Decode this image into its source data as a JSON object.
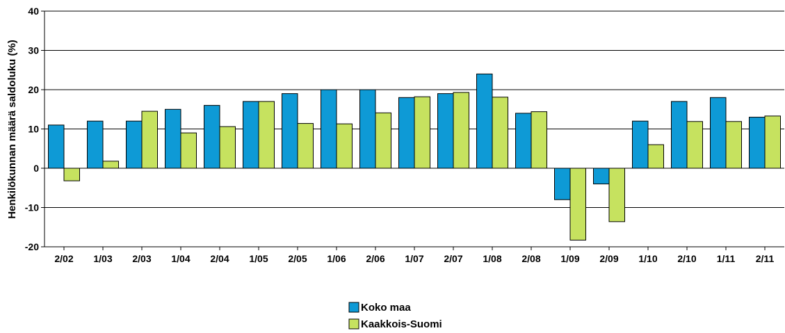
{
  "chart_data": {
    "type": "bar",
    "categories": [
      "2/02",
      "1/03",
      "2/03",
      "1/04",
      "2/04",
      "1/05",
      "2/05",
      "1/06",
      "2/06",
      "1/07",
      "2/07",
      "1/08",
      "2/08",
      "1/09",
      "2/09",
      "1/10",
      "2/10",
      "1/11",
      "2/11"
    ],
    "series": [
      {
        "name": "Koko maa",
        "color": "#0e9ad6",
        "values": [
          11,
          12,
          12,
          15,
          16,
          17,
          19,
          20,
          20,
          18,
          19,
          24,
          14,
          -8,
          -4,
          12,
          17,
          18,
          13
        ]
      },
      {
        "name": "Kaakkois-Suomi",
        "color": "#c6e25f",
        "values": [
          -3.2,
          1.8,
          14.5,
          9,
          10.6,
          17,
          11.4,
          11.3,
          14.1,
          18.2,
          19.3,
          18.1,
          14.4,
          -18.3,
          -13.6,
          6,
          11.9,
          11.9,
          13.3
        ]
      }
    ],
    "ylabel": "Henkilökunnan määrä saldoluku (%)",
    "xlabel": "",
    "ylim": [
      -20,
      40
    ],
    "yticks": [
      -20,
      -10,
      0,
      10,
      20,
      30,
      40
    ],
    "grid": true,
    "legend_position": "bottom-center"
  }
}
